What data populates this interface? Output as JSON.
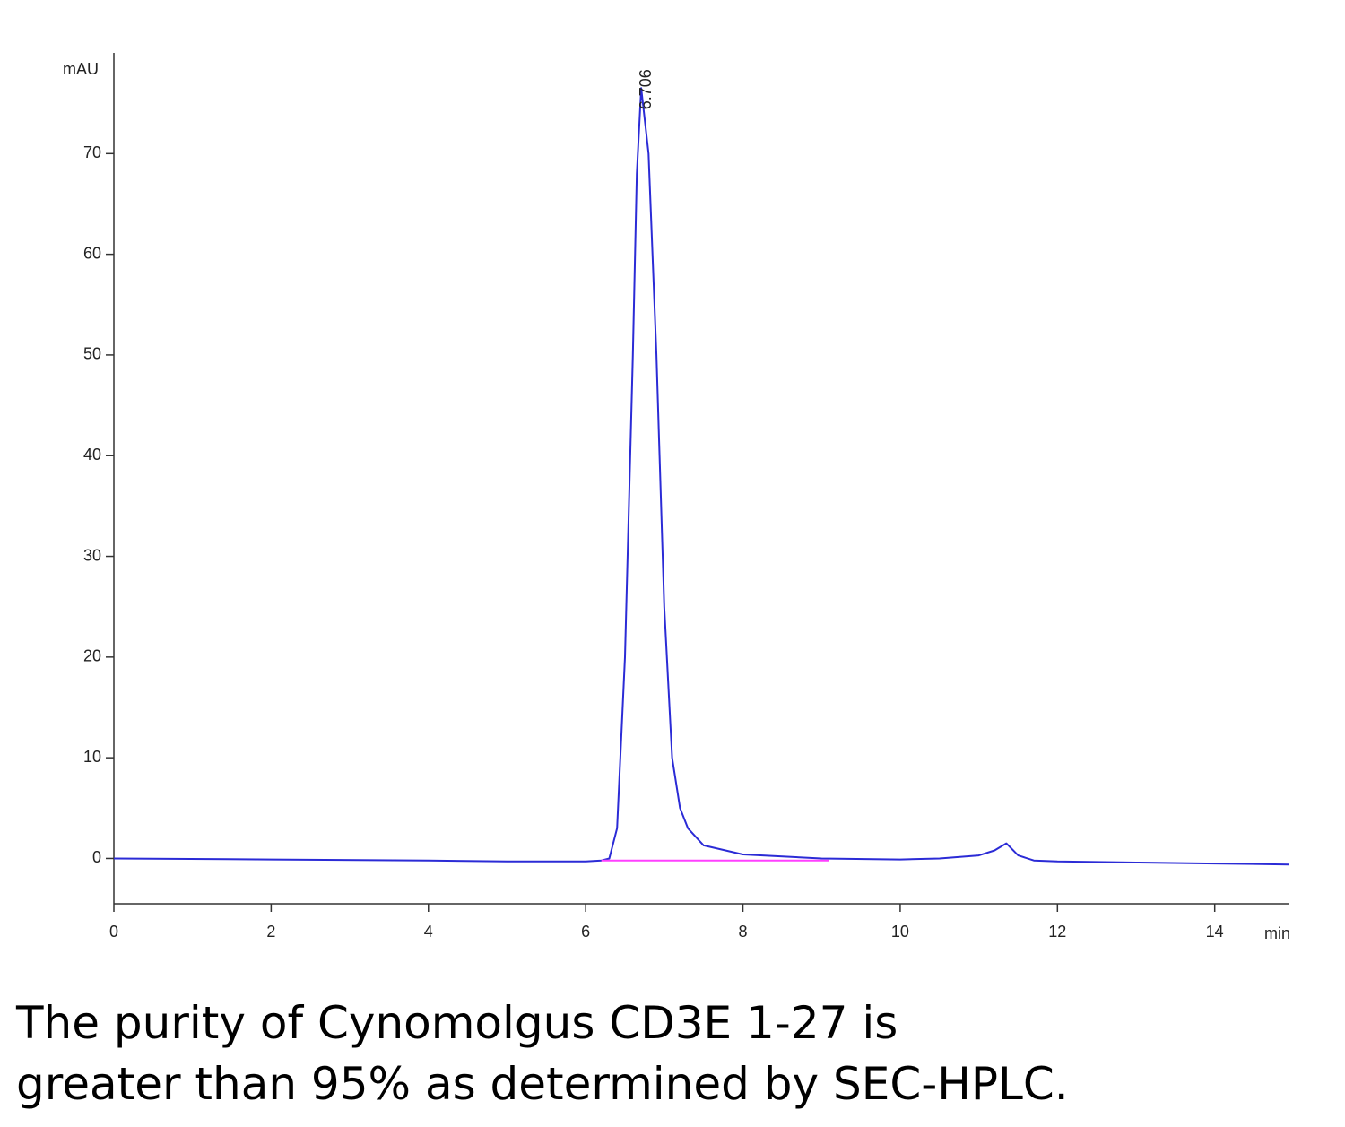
{
  "chart_data": {
    "type": "line",
    "ylabel": "mAU",
    "xlabel": "min",
    "xlim": [
      0,
      14.95
    ],
    "ylim": [
      -4.5,
      80
    ],
    "xticks": [
      0,
      2,
      4,
      6,
      8,
      10,
      12,
      14
    ],
    "yticks": [
      0,
      10,
      20,
      30,
      40,
      50,
      60,
      70
    ],
    "series": [
      {
        "color": "#2b2bd6",
        "x": [
          0,
          2,
          4,
          5,
          6,
          6.2,
          6.3,
          6.4,
          6.5,
          6.6,
          6.65,
          6.706,
          6.8,
          6.9,
          7.0,
          7.1,
          7.2,
          7.3,
          7.5,
          8,
          9,
          10,
          10.5,
          11,
          11.2,
          11.35,
          11.5,
          11.7,
          12,
          13,
          14,
          14.95
        ],
        "values": [
          0,
          -0.1,
          -0.2,
          -0.3,
          -0.3,
          -0.2,
          0,
          3,
          20,
          50,
          68,
          76.5,
          70,
          50,
          25,
          10,
          5,
          3,
          1.3,
          0.4,
          0,
          -0.1,
          0,
          0.3,
          0.8,
          1.5,
          0.3,
          -0.2,
          -0.3,
          -0.4,
          -0.5,
          -0.6
        ]
      },
      {
        "color": "#ff40ff",
        "x": [
          6.2,
          9.1
        ],
        "values": [
          -0.2,
          -0.2
        ]
      }
    ],
    "annotations": [
      {
        "text": "6.706",
        "x": 6.706,
        "y": 76.5
      }
    ]
  },
  "caption": [
    "The purity of Cynomolgus CD3E 1-27 is",
    "greater than 95% as determined by SEC-HPLC."
  ]
}
